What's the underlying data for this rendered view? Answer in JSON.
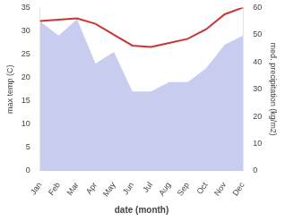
{
  "chart_data": {
    "type": "line",
    "categories": [
      "Jan",
      "Feb",
      "Mar",
      "Apr",
      "May",
      "Jun",
      "Jul",
      "Aug",
      "Sep",
      "Oct",
      "Nov",
      "Dec"
    ],
    "series": [
      {
        "type": "area",
        "color": "#c8cdf0",
        "values": [
          32.0,
          29.0,
          32.5,
          23.0,
          25.5,
          17.0,
          17.0,
          19.0,
          19.0,
          22.0,
          27.0,
          29.0
        ]
      },
      {
        "type": "line",
        "color": "#cc3333",
        "axis": "y2",
        "values": [
          55.0,
          55.5,
          56.0,
          54.0,
          50.0,
          46.0,
          45.5,
          47.0,
          48.5,
          52.0,
          57.5,
          60.0
        ]
      }
    ],
    "xlabel": "date (month)",
    "ylabel": "max temp (C)",
    "y2label": "med. precipitation (kg/m2)",
    "ylim": [
      0,
      35
    ],
    "yticks": [
      0,
      5,
      10,
      15,
      20,
      25,
      30,
      35
    ],
    "y2lim": [
      0,
      60
    ],
    "y2ticks": [
      0,
      10,
      20,
      30,
      40,
      50,
      60
    ],
    "grid": false,
    "legend": false
  }
}
